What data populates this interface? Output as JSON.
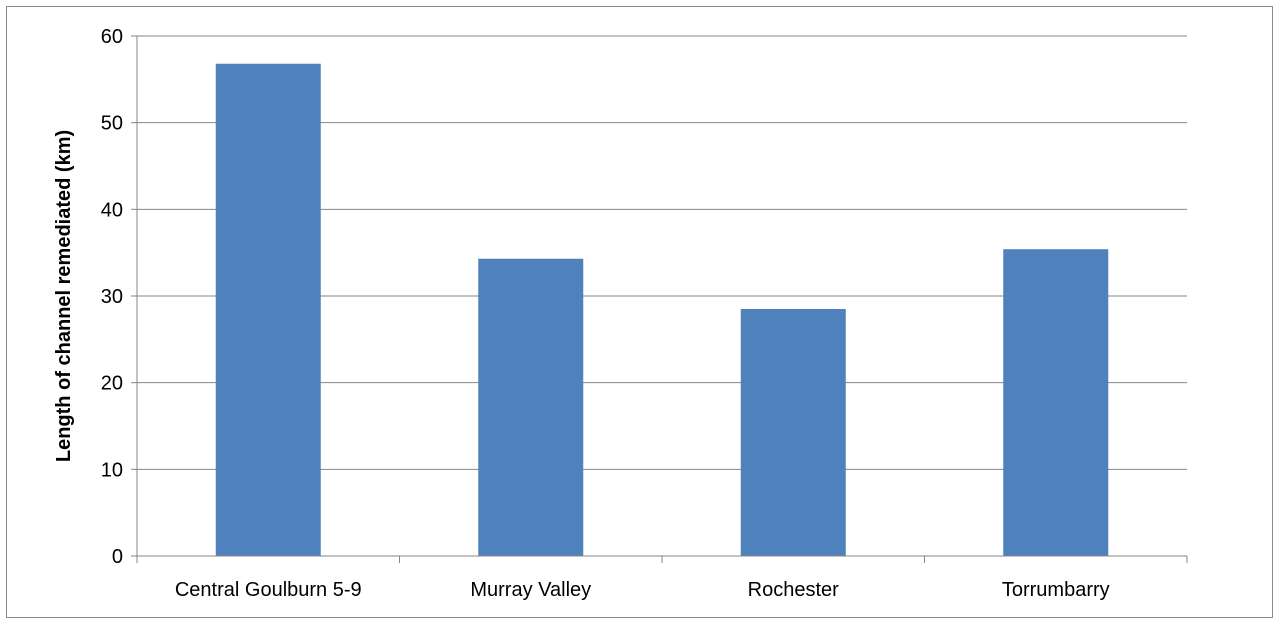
{
  "chart_data": {
    "type": "bar",
    "title": "",
    "xlabel": "",
    "ylabel": "Length of channel remediated (km)",
    "categories": [
      "Central Goulburn 5-9",
      "Murray Valley",
      "Rochester",
      "Torrumbarry"
    ],
    "values": [
      56.8,
      34.3,
      28.5,
      35.4
    ],
    "ylim": [
      0,
      60
    ],
    "yticks": [
      0,
      10,
      20,
      30,
      40,
      50,
      60
    ],
    "grid": true,
    "legend": "none",
    "colors": {
      "bar": "#4f81bd",
      "grid": "#868686",
      "axis": "#868686"
    }
  }
}
